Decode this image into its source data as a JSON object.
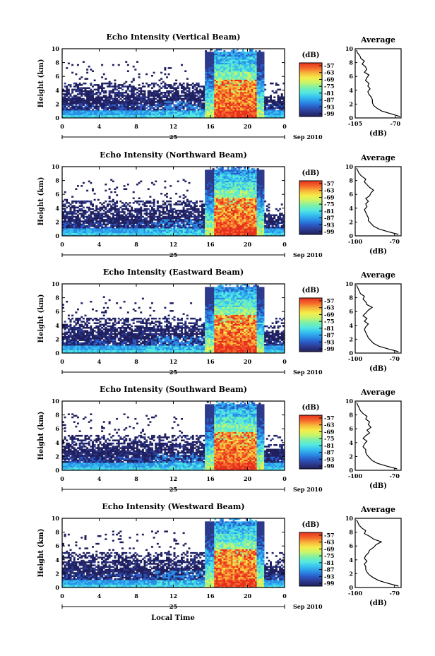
{
  "figure": {
    "date_label": "Sep 2010",
    "day_label": "25",
    "xlabel": "Local Time"
  },
  "colorscale": [
    "#202060",
    "#2d3a8c",
    "#2a5cc8",
    "#2b8fe6",
    "#36c0f0",
    "#55e8e0",
    "#7cf0a8",
    "#c8f46a",
    "#f4ee4a",
    "#f8b83a",
    "#f46a2c",
    "#e8301e"
  ],
  "chart_data": [
    {
      "type": "heatmap",
      "title": "Echo Intensity (Vertical Beam)",
      "ylabel": "Height (km)",
      "x_ticks": [
        "0",
        "4",
        "8",
        "12",
        "16",
        "20",
        "0"
      ],
      "xlim": [
        0,
        24
      ],
      "y_ticks": [
        "0",
        "2",
        "4",
        "6",
        "8",
        "10"
      ],
      "ylim": [
        0,
        10
      ],
      "colorbar": {
        "unit": "(dB)",
        "ticks": [
          "-57",
          "-63",
          "-69",
          "-75",
          "-81",
          "-87",
          "-93",
          "-99"
        ]
      },
      "average": {
        "title": "Average",
        "xlabel": "(dB)",
        "x_ticks": [
          "-105",
          "-70"
        ],
        "xlim": [
          -105,
          -65
        ],
        "y_ticks": [
          "0",
          "2",
          "4",
          "6",
          "8",
          "10"
        ],
        "heights": [
          0.2,
          0.6,
          1,
          1.4,
          1.8,
          2.2,
          2.6,
          3,
          3.4,
          3.8,
          4.2,
          4.6,
          5,
          5.4,
          5.8,
          6.2,
          6.6,
          7,
          7.4,
          7.8,
          8.2,
          8.6,
          9,
          9.4,
          9.8
        ],
        "values": [
          -66,
          -74,
          -82,
          -86,
          -89,
          -90,
          -90,
          -91,
          -93,
          -94,
          -92,
          -94,
          -93,
          -96,
          -95,
          -93,
          -97,
          -95,
          -96,
          -99,
          -97,
          -100,
          -101,
          -103,
          -104
        ]
      }
    },
    {
      "type": "heatmap",
      "title": "Echo Intensity (Northward Beam)",
      "ylabel": "Height (km)",
      "x_ticks": [
        "0",
        "4",
        "8",
        "12",
        "16",
        "20",
        "0"
      ],
      "xlim": [
        0,
        24
      ],
      "y_ticks": [
        "0",
        "2",
        "4",
        "6",
        "8",
        "10"
      ],
      "ylim": [
        0,
        10
      ],
      "colorbar": {
        "unit": "(dB)",
        "ticks": [
          "-57",
          "-63",
          "-69",
          "-75",
          "-81",
          "-87",
          "-93",
          "-99"
        ]
      },
      "average": {
        "title": "Average",
        "xlabel": "(dB)",
        "x_ticks": [
          "-100",
          "-70"
        ],
        "xlim": [
          -100,
          -65
        ],
        "y_ticks": [
          "0",
          "2",
          "4",
          "6",
          "8",
          "10"
        ],
        "heights": [
          0.2,
          0.6,
          1,
          1.4,
          1.8,
          2.2,
          2.6,
          3,
          3.4,
          3.8,
          4.2,
          4.6,
          5,
          5.4,
          5.8,
          6.2,
          6.6,
          7,
          7.4,
          7.8,
          8.2,
          8.6,
          9,
          9.4,
          9.8
        ],
        "values": [
          -67,
          -75,
          -82,
          -86,
          -88,
          -90,
          -90,
          -91,
          -92,
          -93,
          -91,
          -92,
          -90,
          -92,
          -89,
          -88,
          -86,
          -89,
          -91,
          -93,
          -92,
          -95,
          -97,
          -98,
          -99
        ]
      }
    },
    {
      "type": "heatmap",
      "title": "Echo Intensity (Eastward Beam)",
      "ylabel": "Height (km)",
      "x_ticks": [
        "0",
        "4",
        "8",
        "12",
        "16",
        "20",
        "0"
      ],
      "xlim": [
        0,
        24
      ],
      "y_ticks": [
        "0",
        "2",
        "4",
        "6",
        "8",
        "10"
      ],
      "ylim": [
        0,
        10
      ],
      "colorbar": {
        "unit": "(dB)",
        "ticks": [
          "-57",
          "-63",
          "-69",
          "-75",
          "-81",
          "-87",
          "-93",
          "-99"
        ]
      },
      "average": {
        "title": "Average",
        "xlabel": "(dB)",
        "x_ticks": [
          "-100",
          "-70"
        ],
        "xlim": [
          -100,
          -65
        ],
        "y_ticks": [
          "0",
          "2",
          "4",
          "6",
          "8",
          "10"
        ],
        "heights": [
          0.2,
          0.6,
          1,
          1.4,
          1.8,
          2.2,
          2.6,
          3,
          3.4,
          3.8,
          4.2,
          4.6,
          5,
          5.4,
          5.8,
          6.2,
          6.6,
          7,
          7.4,
          7.8,
          8.2,
          8.6,
          9,
          9.4,
          9.8
        ],
        "values": [
          -67,
          -75,
          -82,
          -86,
          -88,
          -90,
          -91,
          -92,
          -93,
          -92,
          -90,
          -93,
          -91,
          -94,
          -92,
          -90,
          -87,
          -91,
          -92,
          -94,
          -93,
          -96,
          -97,
          -98,
          -99
        ]
      }
    },
    {
      "type": "heatmap",
      "title": "Echo Intensity (Southward Beam)",
      "ylabel": "Height (km)",
      "x_ticks": [
        "0",
        "4",
        "8",
        "12",
        "16",
        "20",
        "0"
      ],
      "xlim": [
        0,
        24
      ],
      "y_ticks": [
        "0",
        "2",
        "4",
        "6",
        "8",
        "10"
      ],
      "ylim": [
        0,
        10
      ],
      "colorbar": {
        "unit": "(dB)",
        "ticks": [
          "-57",
          "-63",
          "-69",
          "-75",
          "-81",
          "-87",
          "-93",
          "-99"
        ]
      },
      "average": {
        "title": "Average",
        "xlabel": "(dB)",
        "x_ticks": [
          "-100",
          "-70"
        ],
        "xlim": [
          -100,
          -65
        ],
        "y_ticks": [
          "0",
          "2",
          "4",
          "6",
          "8",
          "10"
        ],
        "heights": [
          0.2,
          0.6,
          1,
          1.4,
          1.8,
          2.2,
          2.6,
          3,
          3.4,
          3.8,
          4.2,
          4.6,
          5,
          5.4,
          5.8,
          6.2,
          6.6,
          7,
          7.4,
          7.8,
          8.2,
          8.6,
          9,
          9.4,
          9.8
        ],
        "values": [
          -68,
          -76,
          -83,
          -87,
          -89,
          -91,
          -92,
          -92,
          -94,
          -93,
          -91,
          -94,
          -92,
          -89,
          -91,
          -88,
          -90,
          -89,
          -92,
          -91,
          -94,
          -96,
          -97,
          -98,
          -99
        ]
      }
    },
    {
      "type": "heatmap",
      "title": "Echo Intensity (Westward Beam)",
      "ylabel": "Height (km)",
      "x_ticks": [
        "0",
        "4",
        "8",
        "12",
        "16",
        "20",
        "0"
      ],
      "xlim": [
        0,
        24
      ],
      "y_ticks": [
        "0",
        "2",
        "4",
        "6",
        "8",
        "10"
      ],
      "ylim": [
        0,
        10
      ],
      "colorbar": {
        "unit": "(dB)",
        "ticks": [
          "-57",
          "-63",
          "-69",
          "-75",
          "-81",
          "-87",
          "-93",
          "-99"
        ]
      },
      "average": {
        "title": "Average",
        "xlabel": "(dB)",
        "x_ticks": [
          "-100",
          "-70"
        ],
        "xlim": [
          -100,
          -65
        ],
        "y_ticks": [
          "0",
          "2",
          "4",
          "6",
          "8",
          "10"
        ],
        "heights": [
          0.2,
          0.6,
          1,
          1.4,
          1.8,
          2.2,
          2.6,
          3,
          3.4,
          3.8,
          4.2,
          4.6,
          5,
          5.4,
          5.8,
          6.2,
          6.6,
          7,
          7.4,
          7.8,
          8.2,
          8.6,
          9,
          9.4,
          9.8
        ],
        "values": [
          -67,
          -75,
          -82,
          -86,
          -89,
          -91,
          -92,
          -92,
          -93,
          -91,
          -93,
          -92,
          -90,
          -89,
          -86,
          -84,
          -80,
          -86,
          -89,
          -93,
          -92,
          -95,
          -97,
          -98,
          -99
        ]
      }
    }
  ]
}
